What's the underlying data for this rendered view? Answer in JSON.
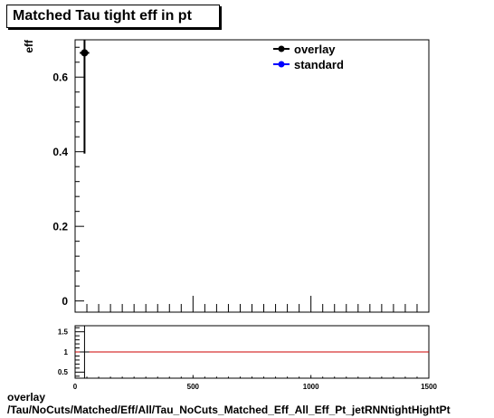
{
  "chart_data": [
    {
      "type": "scatter",
      "title": "Matched Tau tight eff in pt",
      "xlabel": "",
      "ylabel": "eff",
      "xlim": [
        0,
        1500
      ],
      "ylim": [
        -0.03,
        0.7
      ],
      "yticks": [
        0,
        0.2,
        0.4,
        0.6
      ],
      "ytick_labels": [
        "0",
        "0.2",
        "0.4",
        "0.6"
      ],
      "legend_position": "top-right",
      "series": [
        {
          "name": "overlay",
          "color": "#000000",
          "points": [
            {
              "x": 40,
              "xerr": 20,
              "y": 0.665,
              "yerr_low": 0.27,
              "yerr_high": 0.035
            }
          ]
        },
        {
          "name": "standard",
          "color": "#0000ff",
          "points": []
        }
      ]
    },
    {
      "type": "line",
      "title": "",
      "xlabel": "",
      "ylabel": "",
      "xlim": [
        0,
        1500
      ],
      "ylim": [
        0.35,
        1.65
      ],
      "yticks": [
        0.5,
        1,
        1.5
      ],
      "ytick_labels": [
        "0.5",
        "1",
        "1.5"
      ],
      "xticks": [
        0,
        500,
        1000,
        1500
      ],
      "xtick_labels": [
        "0",
        "500",
        "1000",
        "1500"
      ],
      "reference_line": {
        "y": 1,
        "color": "#cc0000"
      },
      "points": [
        {
          "x": 40,
          "xerr": 20,
          "y_low": 0.35,
          "y_high": 1.65
        }
      ]
    }
  ],
  "footer": {
    "line1": "overlay",
    "line2": "/Tau/NoCuts/Matched/Eff/All/Tau_NoCuts_Matched_Eff_All_Eff_Pt_jetRNNtightHightPt"
  }
}
